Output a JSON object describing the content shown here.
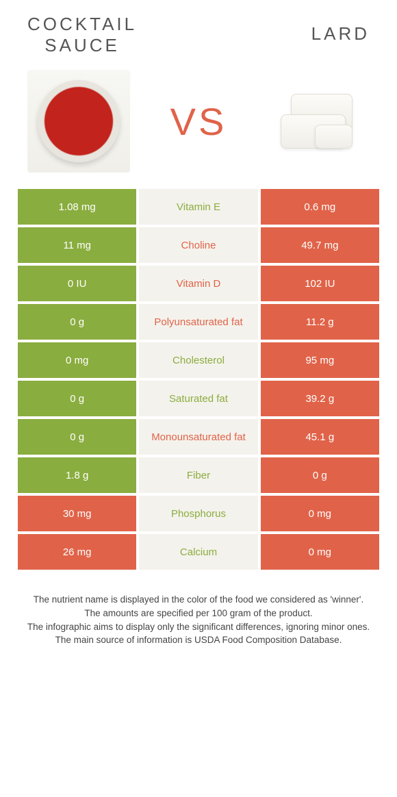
{
  "colors": {
    "green": "#8aad3f",
    "orange": "#e06349",
    "mid_bg": "#f4f2ec"
  },
  "header": {
    "left_title": "COCKTAIL\nSAUCE",
    "right_title": "LARD",
    "vs": "VS"
  },
  "rows": [
    {
      "left": "1.08 mg",
      "mid": "Vitamin E",
      "right": "0.6 mg",
      "left_bg": "green",
      "right_bg": "orange",
      "mid_color": "green"
    },
    {
      "left": "11 mg",
      "mid": "Choline",
      "right": "49.7 mg",
      "left_bg": "green",
      "right_bg": "orange",
      "mid_color": "orange"
    },
    {
      "left": "0 IU",
      "mid": "Vitamin D",
      "right": "102 IU",
      "left_bg": "green",
      "right_bg": "orange",
      "mid_color": "orange"
    },
    {
      "left": "0 g",
      "mid": "Polyunsaturated fat",
      "right": "11.2 g",
      "left_bg": "green",
      "right_bg": "orange",
      "mid_color": "orange"
    },
    {
      "left": "0 mg",
      "mid": "Cholesterol",
      "right": "95 mg",
      "left_bg": "green",
      "right_bg": "orange",
      "mid_color": "green"
    },
    {
      "left": "0 g",
      "mid": "Saturated fat",
      "right": "39.2 g",
      "left_bg": "green",
      "right_bg": "orange",
      "mid_color": "green"
    },
    {
      "left": "0 g",
      "mid": "Monounsaturated fat",
      "right": "45.1 g",
      "left_bg": "green",
      "right_bg": "orange",
      "mid_color": "orange"
    },
    {
      "left": "1.8 g",
      "mid": "Fiber",
      "right": "0 g",
      "left_bg": "green",
      "right_bg": "orange",
      "mid_color": "green"
    },
    {
      "left": "30 mg",
      "mid": "Phosphorus",
      "right": "0 mg",
      "left_bg": "orange",
      "right_bg": "orange",
      "mid_color": "green"
    },
    {
      "left": "26 mg",
      "mid": "Calcium",
      "right": "0 mg",
      "left_bg": "orange",
      "right_bg": "orange",
      "mid_color": "green"
    }
  ],
  "footnotes": [
    "The nutrient name is displayed in the color of the food we considered as 'winner'.",
    "The amounts are specified per 100 gram of the product.",
    "The infographic aims to display only the significant differences, ignoring minor ones.",
    "The main source of information is USDA Food Composition Database."
  ]
}
